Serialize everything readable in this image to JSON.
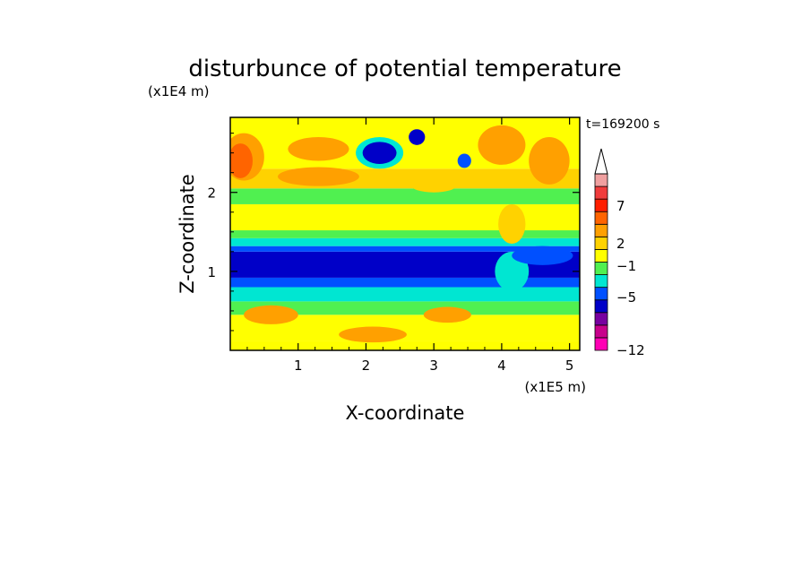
{
  "chart_data": {
    "type": "heatmap",
    "title": "disturbunce of potential temperature",
    "xlabel": "X-coordinate",
    "ylabel": "Z-coordinate",
    "x_unit": "(x1E5 m)",
    "y_unit": "(x1E4 m)",
    "time_label": "t=169200 s",
    "xlim": [
      0,
      5.15
    ],
    "ylim": [
      0,
      2.95
    ],
    "x_ticks": [
      "1",
      "2",
      "3",
      "4",
      "5"
    ],
    "y_ticks": [
      "1",
      "2"
    ],
    "colorbar": {
      "tick_labels": [
        "7",
        "2",
        "−1",
        "−5",
        "−12"
      ],
      "colors": [
        "#ff00b4",
        "#c8008c",
        "#7800a0",
        "#0000c8",
        "#0050ff",
        "#00e6d2",
        "#50f050",
        "#ffff00",
        "#ffd200",
        "#ffa000",
        "#ff6400",
        "#ff1e00",
        "#f03c3c",
        "#f0a0a0"
      ]
    },
    "bands": [
      {
        "z0": 0.0,
        "z1": 0.12,
        "color": "#ffff00"
      },
      {
        "z0": 0.12,
        "z1": 0.45,
        "color": "#ffff00"
      },
      {
        "z0": 0.45,
        "z1": 0.62,
        "color": "#50f050"
      },
      {
        "z0": 0.62,
        "z1": 0.8,
        "color": "#00e6d2"
      },
      {
        "z0": 0.8,
        "z1": 0.92,
        "color": "#0050ff"
      },
      {
        "z0": 0.92,
        "z1": 1.25,
        "color": "#0000c8"
      },
      {
        "z0": 1.25,
        "z1": 1.32,
        "color": "#0050ff"
      },
      {
        "z0": 1.32,
        "z1": 1.42,
        "color": "#00e6d2"
      },
      {
        "z0": 1.42,
        "z1": 1.52,
        "color": "#50f050"
      },
      {
        "z0": 1.52,
        "z1": 1.85,
        "color": "#ffff00"
      },
      {
        "z0": 1.85,
        "z1": 2.05,
        "color": "#50f050"
      },
      {
        "z0": 2.05,
        "z1": 2.3,
        "color": "#ffd200"
      },
      {
        "z0": 2.3,
        "z1": 2.95,
        "color": "#ffff00"
      }
    ],
    "blobs": [
      {
        "x": 2.2,
        "z": 2.5,
        "rx": 0.25,
        "rz": 0.14,
        "color": "#0000c8"
      },
      {
        "x": 2.2,
        "z": 2.5,
        "rx": 0.35,
        "rz": 0.2,
        "color": "#00e6d2"
      },
      {
        "x": 2.75,
        "z": 2.7,
        "rx": 0.12,
        "rz": 0.1,
        "color": "#0000c8"
      },
      {
        "x": 3.45,
        "z": 2.4,
        "rx": 0.1,
        "rz": 0.09,
        "color": "#0050ff"
      },
      {
        "x": 0.15,
        "z": 2.4,
        "rx": 0.18,
        "rz": 0.22,
        "color": "#ff6400"
      },
      {
        "x": 0.2,
        "z": 2.45,
        "rx": 0.3,
        "rz": 0.3,
        "color": "#ffa000"
      },
      {
        "x": 1.3,
        "z": 2.55,
        "rx": 0.45,
        "rz": 0.15,
        "color": "#ffa000"
      },
      {
        "x": 1.3,
        "z": 2.2,
        "rx": 0.6,
        "rz": 0.12,
        "color": "#ffa000"
      },
      {
        "x": 3.0,
        "z": 2.1,
        "rx": 0.35,
        "rz": 0.1,
        "color": "#ffd200"
      },
      {
        "x": 2.6,
        "z": 1.95,
        "rx": 0.2,
        "rz": 0.08,
        "color": "#50f050"
      },
      {
        "x": 0.6,
        "z": 0.45,
        "rx": 0.4,
        "rz": 0.12,
        "color": "#ffa000"
      },
      {
        "x": 2.1,
        "z": 0.2,
        "rx": 0.5,
        "rz": 0.1,
        "color": "#ffa000"
      },
      {
        "x": 3.2,
        "z": 0.45,
        "rx": 0.35,
        "rz": 0.1,
        "color": "#ffa000"
      },
      {
        "x": 4.0,
        "z": 2.6,
        "rx": 0.35,
        "rz": 0.25,
        "color": "#ffa000"
      },
      {
        "x": 4.7,
        "z": 2.4,
        "rx": 0.3,
        "rz": 0.3,
        "color": "#ffa000"
      },
      {
        "x": 4.6,
        "z": 1.2,
        "rx": 0.45,
        "rz": 0.12,
        "color": "#0050ff"
      },
      {
        "x": 4.15,
        "z": 1.0,
        "rx": 0.25,
        "rz": 0.25,
        "color": "#00e6d2"
      },
      {
        "x": 4.15,
        "z": 1.6,
        "rx": 0.2,
        "rz": 0.25,
        "color": "#ffd200"
      }
    ]
  }
}
